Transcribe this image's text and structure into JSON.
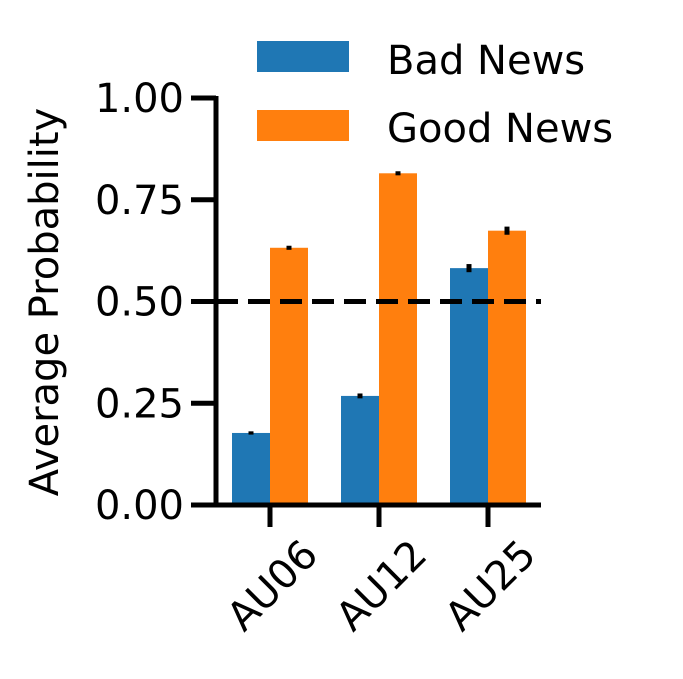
{
  "chart_data": {
    "type": "bar",
    "categories": [
      "AU06",
      "AU12",
      "AU25"
    ],
    "series": [
      {
        "name": "Bad News",
        "color": "#1f77b4",
        "values": [
          0.177,
          0.268,
          0.582
        ],
        "errors": [
          0.004,
          0.006,
          0.01
        ]
      },
      {
        "name": "Good News",
        "color": "#ff7f0e",
        "values": [
          0.632,
          0.815,
          0.674
        ],
        "errors": [
          0.005,
          0.005,
          0.01
        ]
      }
    ],
    "ylabel": "Average Probability",
    "xlabel": "",
    "ylim": [
      0,
      1.0
    ],
    "yticks": [
      "0.00",
      "0.25",
      "0.50",
      "0.75",
      "1.00"
    ],
    "reference_line": {
      "y": 0.5,
      "style": "dashed"
    },
    "legend_position": "top-right",
    "grid": false
  }
}
